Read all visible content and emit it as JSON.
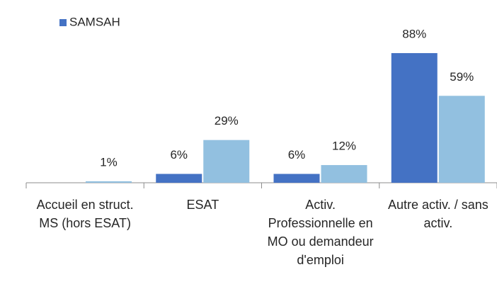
{
  "chart_data": {
    "type": "bar",
    "categories": [
      "Accueil en struct. MS (hors ESAT)",
      "ESAT",
      "Activ. Professionnelle en MO ou demandeur d'emploi",
      "Autre activ. / sans activ."
    ],
    "series": [
      {
        "name": "SAMSAH",
        "color": "#4472c4",
        "values": [
          null,
          6,
          6,
          88
        ],
        "value_labels": [
          null,
          "6%",
          "6%",
          "88%"
        ]
      },
      {
        "color": "#92c0e0",
        "values": [
          1,
          29,
          12,
          59
        ],
        "value_labels": [
          "1%",
          "29%",
          "12%",
          "59%"
        ]
      }
    ],
    "ylim": [
      0,
      100
    ],
    "legend": "top-left"
  }
}
